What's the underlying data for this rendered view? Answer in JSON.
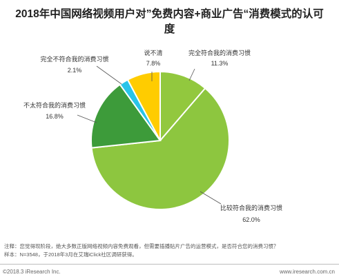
{
  "chart_data": {
    "type": "pie",
    "title": "2018年中国网络视频用户对”免费内容+商业广告“消费模式的认可度",
    "slices": [
      {
        "label": "完全符合我的消费习惯",
        "value": 11.3,
        "value_label": "11.3%",
        "color": "#92c83e"
      },
      {
        "label": "比较符合我的消费习惯",
        "value": 62.0,
        "value_label": "62.0%",
        "color": "#8dc63f"
      },
      {
        "label": "不太符合我的消费习惯",
        "value": 16.8,
        "value_label": "16.8%",
        "color": "#3d9b3a"
      },
      {
        "label": "完全不符合我的消费习惯",
        "value": 2.1,
        "value_label": "2.1%",
        "color": "#29c4e8"
      },
      {
        "label": "说不清",
        "value": 7.8,
        "value_label": "7.8%",
        "color": "#ffcc00"
      }
    ]
  },
  "footnotes": {
    "note": "注释：您觉得现阶段，绝大多数正版网络视频内容免费观看，但需要插播贴片广告的运营模式，是否符合您的消费习惯？",
    "sample": "样本：N=3548，于2018年3月在艾瑞iClick社区调研获得。"
  },
  "footer": {
    "copyright": "©2018.3 iResearch Inc.",
    "website": "www.iresearch.com.cn"
  }
}
